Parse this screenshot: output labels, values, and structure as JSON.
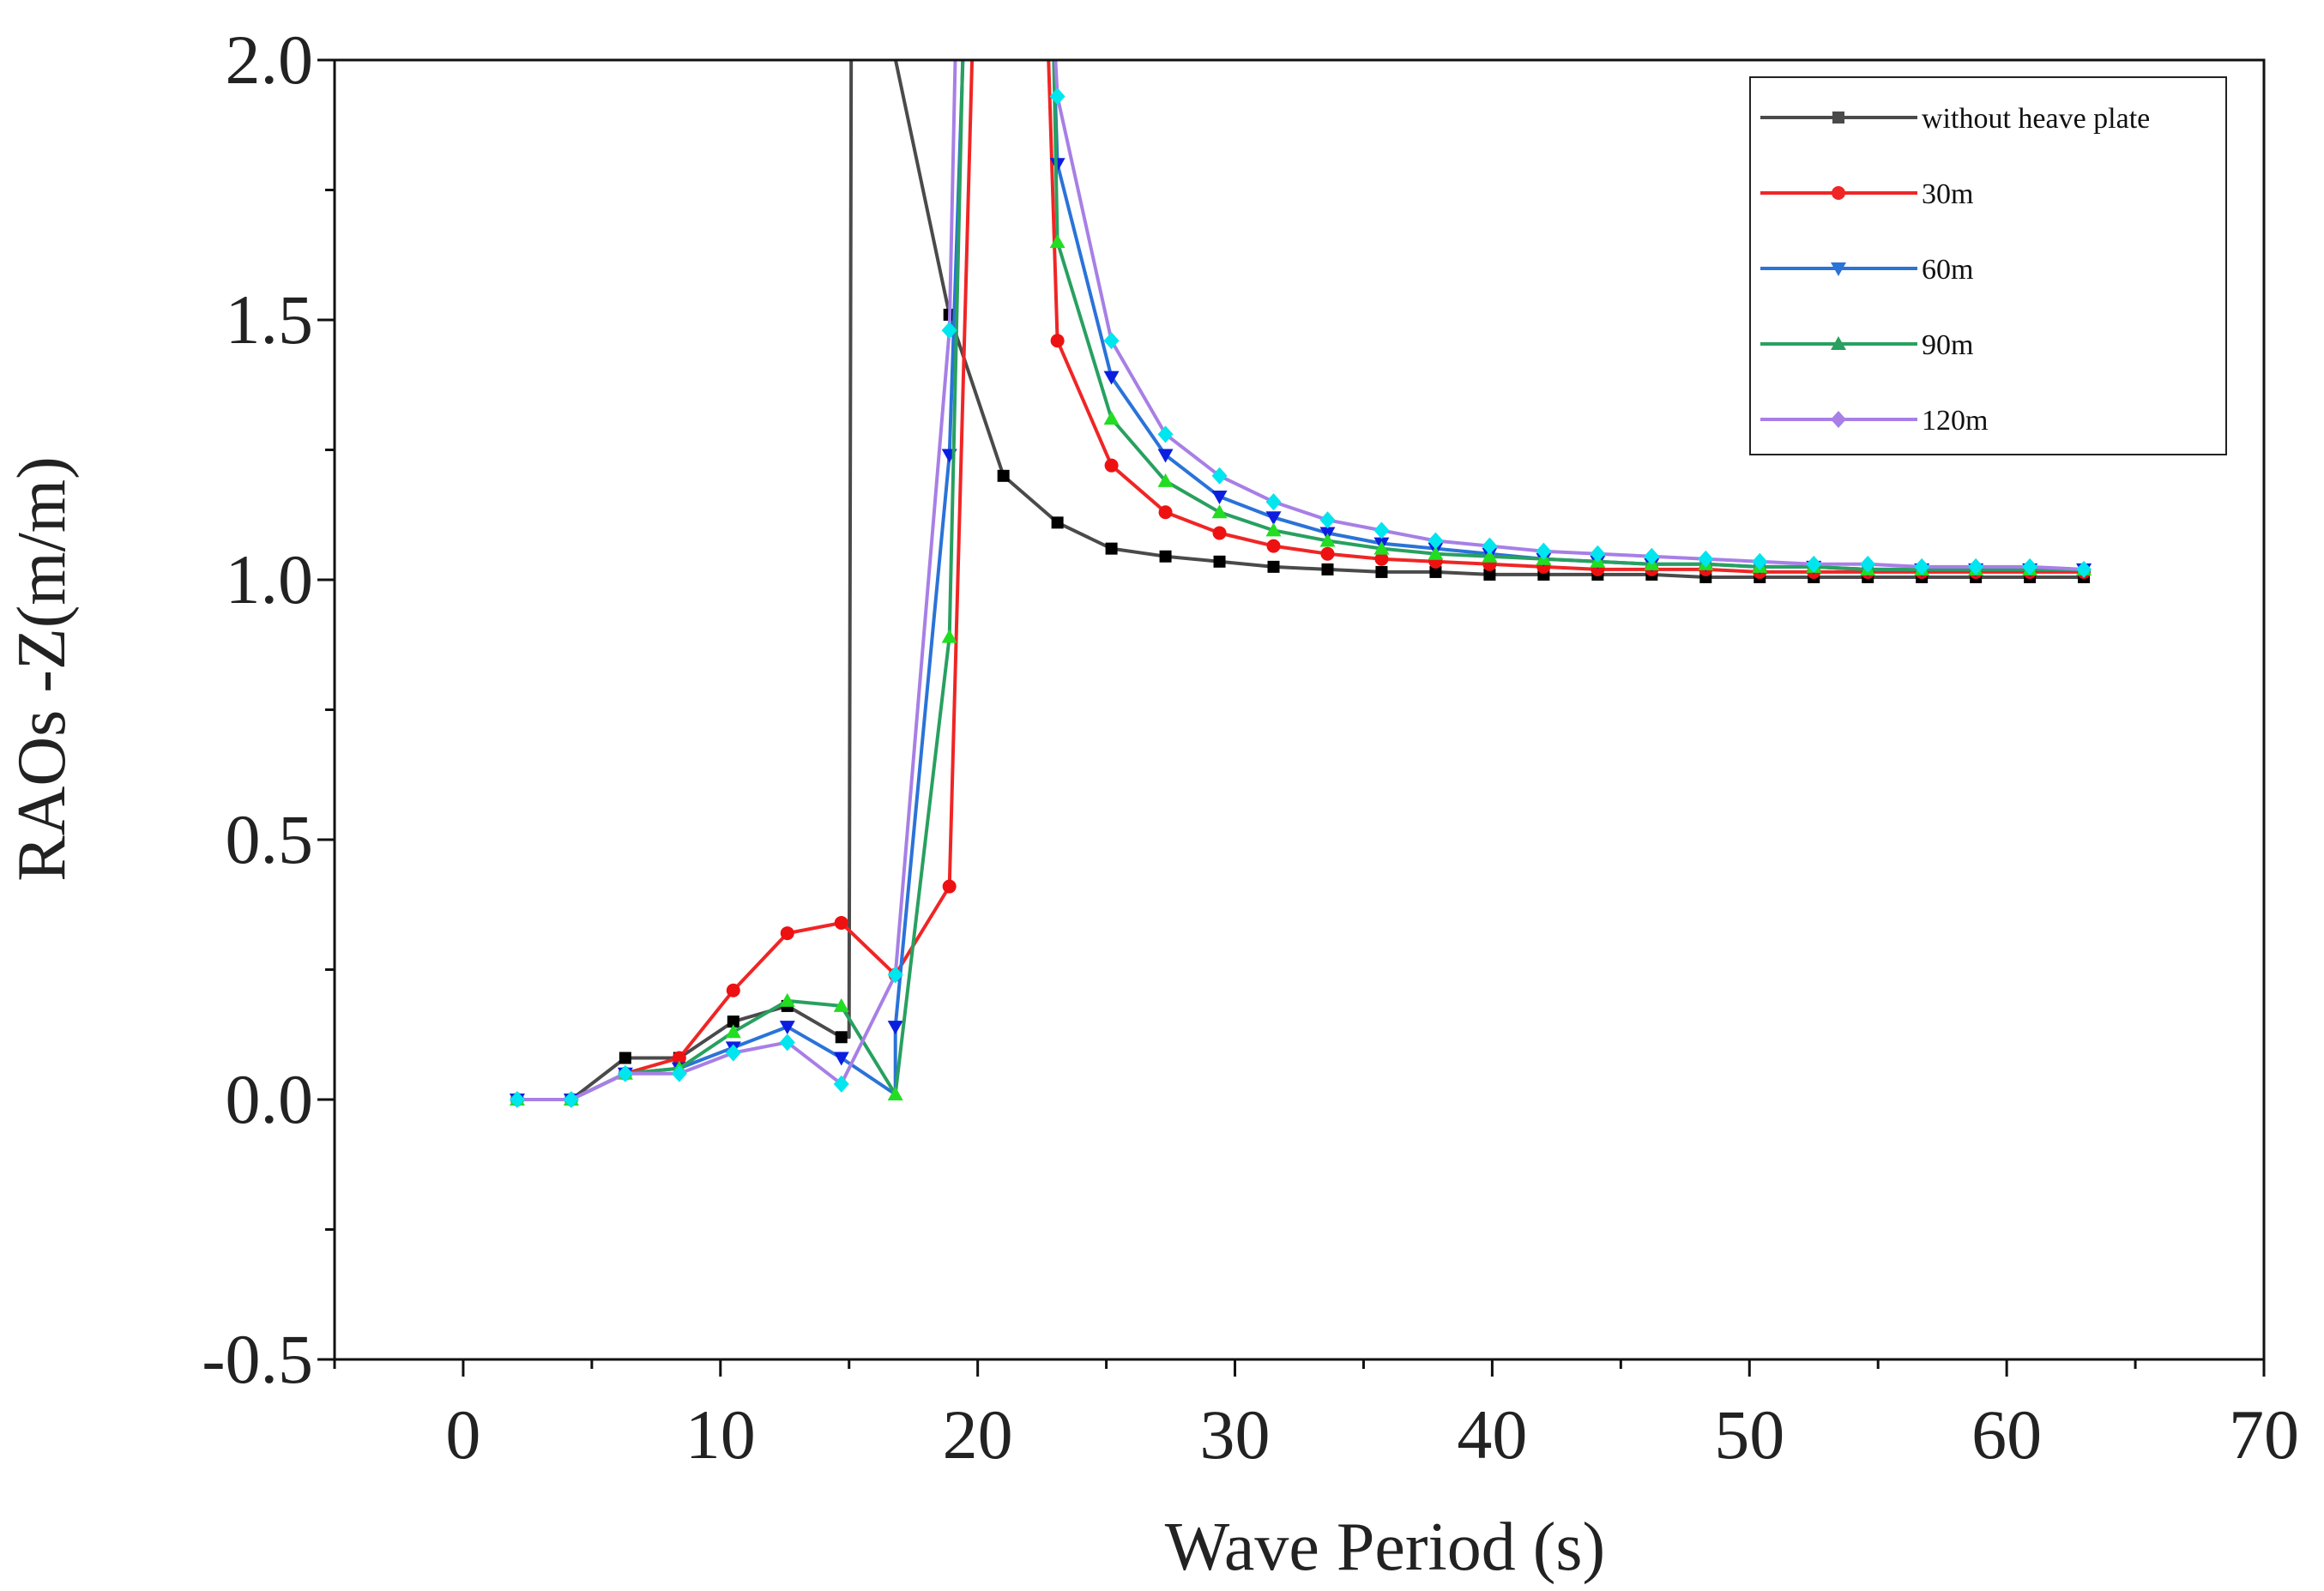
{
  "chart_data": {
    "type": "line",
    "title": "",
    "xlabel": "Wave Period (s)",
    "ylabel": "RAOs -Z(m/m)",
    "xlim": [
      -5,
      70
    ],
    "ylim": [
      -0.5,
      2.0
    ],
    "xticks": [
      0,
      10,
      20,
      30,
      40,
      50,
      60,
      70
    ],
    "xtick_labels": [
      "0",
      "10",
      "20",
      "30",
      "40",
      "50",
      "60",
      "70"
    ],
    "yticks": [
      -0.5,
      0.0,
      0.5,
      1.0,
      1.5,
      2.0
    ],
    "ytick_labels": [
      "-0.5",
      "0.0",
      "0.5",
      "1.0",
      "1.5",
      "2.0"
    ],
    "legend_position": "top-right",
    "series": [
      {
        "name": "without heave plate",
        "color": "#4a4a4a",
        "marker": "square",
        "marker_color": "#000000",
        "x": [
          2.1,
          4.2,
          6.3,
          8.4,
          10.5,
          12.6,
          14.7,
          15.0,
          15.1,
          18.9,
          21.0,
          23.1,
          25.2,
          27.3,
          29.4,
          31.5,
          33.6,
          35.7,
          37.8,
          39.9,
          42.0,
          44.1,
          46.2,
          48.3,
          50.4,
          52.5,
          54.6,
          56.7,
          58.8,
          60.9,
          63.0
        ],
        "y": [
          0.0,
          0.0,
          0.08,
          0.08,
          0.15,
          0.18,
          0.12,
          0.12,
          2.4,
          1.51,
          1.2,
          1.11,
          1.06,
          1.045,
          1.035,
          1.025,
          1.02,
          1.015,
          1.015,
          1.01,
          1.01,
          1.01,
          1.01,
          1.005,
          1.005,
          1.005,
          1.005,
          1.005,
          1.005,
          1.005,
          1.005
        ],
        "markers_shown": [
          true,
          true,
          true,
          true,
          true,
          true,
          true,
          false,
          false,
          true,
          true,
          true,
          true,
          true,
          true,
          true,
          true,
          true,
          true,
          true,
          true,
          true,
          true,
          true,
          true,
          true,
          true,
          true,
          true,
          true,
          true
        ]
      },
      {
        "name": "30m",
        "color": "#f02525",
        "marker": "circle",
        "marker_color": "#ee1111",
        "x": [
          2.1,
          4.2,
          6.3,
          8.4,
          10.5,
          12.6,
          14.7,
          16.8,
          18.9,
          20.0,
          22.5,
          23.1,
          25.2,
          27.3,
          29.4,
          31.5,
          33.6,
          35.7,
          37.8,
          39.9,
          42.0,
          44.1,
          46.2,
          48.3,
          50.4,
          52.5,
          54.6,
          56.7,
          58.8,
          60.9,
          63.0
        ],
        "y": [
          0.0,
          0.0,
          0.05,
          0.08,
          0.21,
          0.32,
          0.34,
          0.24,
          0.41,
          2.4,
          2.4,
          1.46,
          1.22,
          1.13,
          1.09,
          1.065,
          1.05,
          1.04,
          1.035,
          1.03,
          1.025,
          1.02,
          1.02,
          1.02,
          1.015,
          1.015,
          1.015,
          1.015,
          1.015,
          1.015,
          1.015
        ],
        "markers_shown": [
          true,
          true,
          true,
          true,
          true,
          true,
          true,
          true,
          true,
          false,
          false,
          true,
          true,
          true,
          true,
          true,
          true,
          true,
          true,
          true,
          true,
          true,
          true,
          true,
          true,
          true,
          true,
          true,
          true,
          true,
          true
        ]
      },
      {
        "name": "60m",
        "color": "#2a73d8",
        "marker": "triangle-down",
        "marker_color": "#0b1ee0",
        "x": [
          2.1,
          4.2,
          6.3,
          8.4,
          10.5,
          12.6,
          14.7,
          16.8,
          16.8,
          18.9,
          19.7,
          22.7,
          23.1,
          25.2,
          27.3,
          29.4,
          31.5,
          33.6,
          35.7,
          37.8,
          39.9,
          42.0,
          44.1,
          46.2,
          48.3,
          50.4,
          52.5,
          54.6,
          56.7,
          58.8,
          60.9,
          63.0
        ],
        "y": [
          0.0,
          0.0,
          0.05,
          0.06,
          0.1,
          0.14,
          0.08,
          0.01,
          0.14,
          1.24,
          2.4,
          2.4,
          1.8,
          1.39,
          1.24,
          1.16,
          1.12,
          1.09,
          1.07,
          1.06,
          1.05,
          1.04,
          1.035,
          1.03,
          1.03,
          1.025,
          1.025,
          1.02,
          1.02,
          1.02,
          1.02,
          1.02
        ],
        "markers_shown": [
          true,
          true,
          true,
          true,
          true,
          true,
          true,
          false,
          true,
          true,
          false,
          false,
          true,
          true,
          true,
          true,
          true,
          true,
          true,
          true,
          true,
          true,
          true,
          true,
          true,
          true,
          true,
          true,
          true,
          true,
          true,
          true
        ]
      },
      {
        "name": "90m",
        "color": "#28a060",
        "marker": "triangle-up",
        "marker_color": "#22dd22",
        "x": [
          2.1,
          4.2,
          6.3,
          8.4,
          10.5,
          12.6,
          14.7,
          16.8,
          18.9,
          19.6,
          22.8,
          23.1,
          25.2,
          27.3,
          29.4,
          31.5,
          33.6,
          35.7,
          37.8,
          39.9,
          42.0,
          44.1,
          46.2,
          48.3,
          50.4,
          52.5,
          54.6,
          56.7,
          58.8,
          60.9,
          63.0
        ],
        "y": [
          0.0,
          0.0,
          0.05,
          0.06,
          0.13,
          0.19,
          0.18,
          0.01,
          0.89,
          2.4,
          2.4,
          1.65,
          1.31,
          1.19,
          1.13,
          1.095,
          1.075,
          1.06,
          1.05,
          1.045,
          1.04,
          1.035,
          1.03,
          1.03,
          1.025,
          1.025,
          1.02,
          1.02,
          1.02,
          1.02,
          1.02
        ],
        "markers_shown": [
          true,
          true,
          true,
          true,
          true,
          true,
          true,
          true,
          true,
          false,
          false,
          true,
          true,
          true,
          true,
          true,
          true,
          true,
          true,
          true,
          true,
          true,
          true,
          true,
          true,
          true,
          true,
          true,
          true,
          true,
          true
        ]
      },
      {
        "name": "120m",
        "color": "#a77fe6",
        "marker": "diamond",
        "marker_color": "#00e5ee",
        "x": [
          2.1,
          4.2,
          6.3,
          8.4,
          10.5,
          12.6,
          14.7,
          16.8,
          18.9,
          19.3,
          22.6,
          23.1,
          25.2,
          27.3,
          29.4,
          31.5,
          33.6,
          35.7,
          37.8,
          39.9,
          42.0,
          44.1,
          46.2,
          48.3,
          50.4,
          52.5,
          54.6,
          56.7,
          58.8,
          60.9,
          63.0
        ],
        "y": [
          0.0,
          0.0,
          0.05,
          0.05,
          0.09,
          0.11,
          0.03,
          0.24,
          1.48,
          2.4,
          2.4,
          1.93,
          1.46,
          1.28,
          1.2,
          1.15,
          1.115,
          1.095,
          1.075,
          1.065,
          1.055,
          1.05,
          1.045,
          1.04,
          1.035,
          1.03,
          1.03,
          1.025,
          1.025,
          1.025,
          1.02
        ],
        "markers_shown": [
          true,
          true,
          true,
          true,
          true,
          true,
          true,
          true,
          true,
          false,
          false,
          true,
          true,
          true,
          true,
          true,
          true,
          true,
          true,
          true,
          true,
          true,
          true,
          true,
          true,
          true,
          true,
          true,
          true,
          true,
          true
        ]
      }
    ]
  }
}
